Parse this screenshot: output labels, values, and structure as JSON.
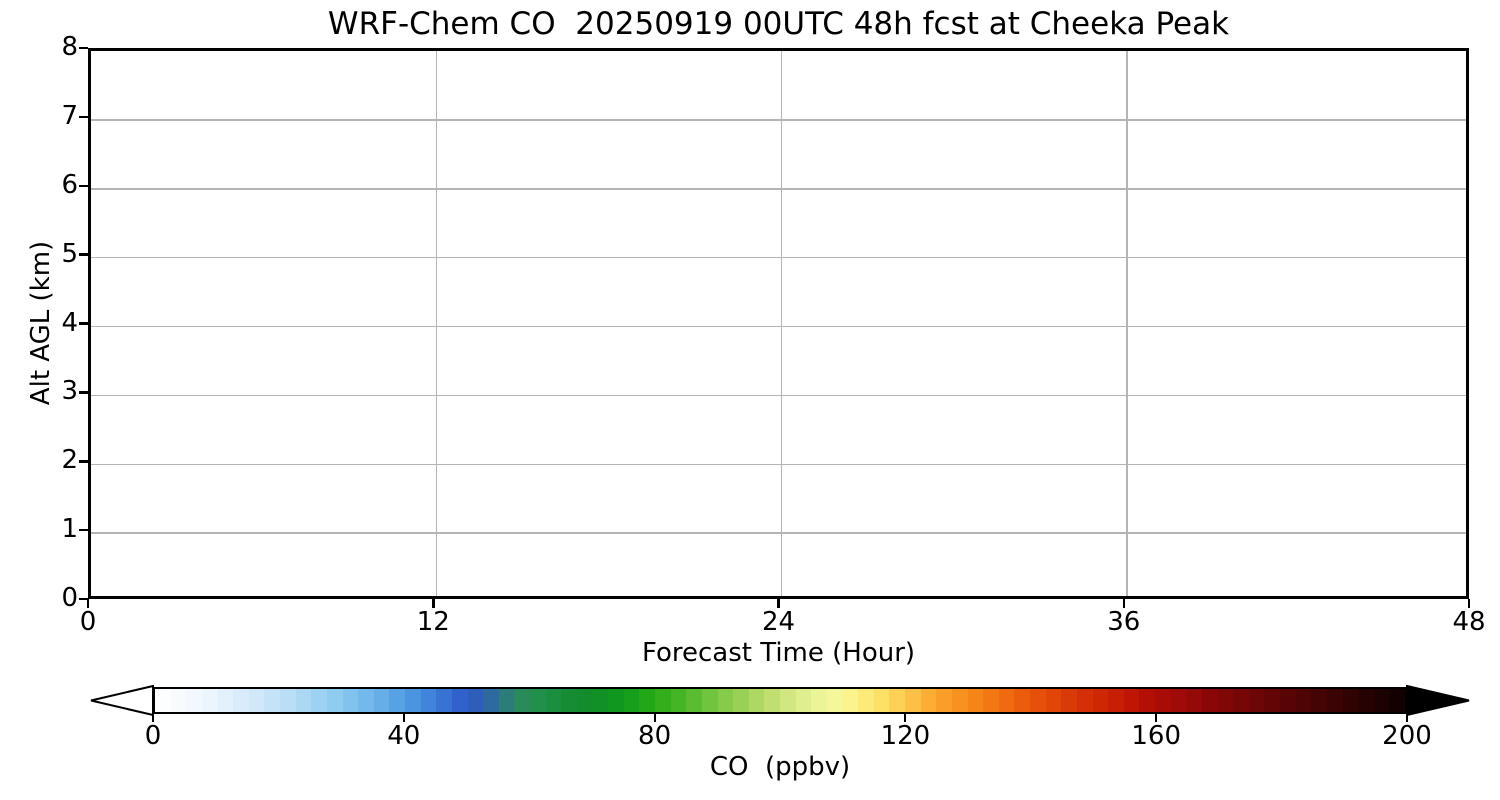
{
  "chart_data": {
    "type": "heatmap",
    "title": "WRF-Chem CO  20250919 00UTC 48h fcst at Cheeka Peak",
    "xlabel": "Forecast Time (Hour)",
    "ylabel": "Alt AGL (km)",
    "xlim": [
      0,
      48
    ],
    "ylim": [
      0,
      8
    ],
    "x_ticks": [
      0,
      12,
      24,
      36,
      48
    ],
    "y_ticks": [
      0,
      1,
      2,
      3,
      4,
      5,
      6,
      7,
      8
    ],
    "grid": true,
    "grid_color": "#b4b4b4",
    "series": [],
    "note": "plot area is empty - no contour/heatmap values are rendered in the panel",
    "colorbar": {
      "label": "CO  (ppbv)",
      "ticks": [
        0,
        40,
        80,
        120,
        160,
        200
      ],
      "range": [
        0,
        200
      ],
      "step": 2.5,
      "extend": "both",
      "under_color": "#ffffff",
      "over_color": "#000000",
      "outline_color": "#000000",
      "stops": [
        [
          0,
          "#ffffff"
        ],
        [
          5,
          "#f5fafe"
        ],
        [
          10,
          "#e7f3fc"
        ],
        [
          15,
          "#d5eafa"
        ],
        [
          20,
          "#c0e1f7"
        ],
        [
          25,
          "#a5d5f3"
        ],
        [
          30,
          "#89c7ef"
        ],
        [
          35,
          "#6db4ea"
        ],
        [
          40,
          "#4f9ce2"
        ],
        [
          45,
          "#3c7cd8"
        ],
        [
          50,
          "#2c58c8"
        ],
        [
          54,
          "#2d6b9c"
        ],
        [
          58,
          "#2b8a5e"
        ],
        [
          62,
          "#1f9146"
        ],
        [
          66,
          "#168c36"
        ],
        [
          70,
          "#128c28"
        ],
        [
          75,
          "#0e9a1c"
        ],
        [
          80,
          "#28ac14"
        ],
        [
          85,
          "#50b82a"
        ],
        [
          90,
          "#7cc844"
        ],
        [
          95,
          "#a2d45c"
        ],
        [
          100,
          "#c8e478"
        ],
        [
          104,
          "#e2f08e"
        ],
        [
          108,
          "#f4f7a0"
        ],
        [
          112,
          "#fdf286"
        ],
        [
          116,
          "#fde268"
        ],
        [
          120,
          "#fdc84e"
        ],
        [
          124,
          "#fcab32"
        ],
        [
          128,
          "#fa9422"
        ],
        [
          132,
          "#f58216"
        ],
        [
          136,
          "#f06c10"
        ],
        [
          140,
          "#e8560c"
        ],
        [
          144,
          "#e04408"
        ],
        [
          148,
          "#d63206"
        ],
        [
          152,
          "#cc2404"
        ],
        [
          156,
          "#c01604"
        ],
        [
          160,
          "#ae0c06"
        ],
        [
          165,
          "#9a0a08"
        ],
        [
          170,
          "#860606"
        ],
        [
          175,
          "#720606"
        ],
        [
          180,
          "#5e0404"
        ],
        [
          185,
          "#4a0404"
        ],
        [
          190,
          "#360202"
        ],
        [
          195,
          "#220202"
        ],
        [
          200,
          "#0e0101"
        ]
      ]
    }
  }
}
